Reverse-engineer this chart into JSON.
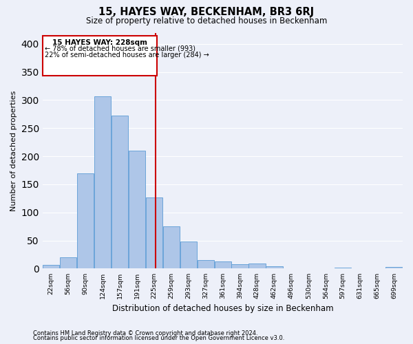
{
  "title": "15, HAYES WAY, BECKENHAM, BR3 6RJ",
  "subtitle": "Size of property relative to detached houses in Beckenham",
  "xlabel": "Distribution of detached houses by size in Beckenham",
  "ylabel": "Number of detached properties",
  "categories": [
    "22sqm",
    "56sqm",
    "90sqm",
    "124sqm",
    "157sqm",
    "191sqm",
    "225sqm",
    "259sqm",
    "293sqm",
    "327sqm",
    "361sqm",
    "394sqm",
    "428sqm",
    "462sqm",
    "496sqm",
    "530sqm",
    "564sqm",
    "597sqm",
    "631sqm",
    "665sqm",
    "699sqm"
  ],
  "values": [
    7,
    20,
    170,
    307,
    272,
    210,
    127,
    75,
    48,
    15,
    13,
    8,
    9,
    4,
    1,
    0,
    0,
    2,
    0,
    0,
    3
  ],
  "bar_color": "#aec6e8",
  "bar_edgecolor": "#5b9bd5",
  "property_line_label": "15 HAYES WAY: 228sqm",
  "annotation_line1": "← 78% of detached houses are smaller (993)",
  "annotation_line2": "22% of semi-detached houses are larger (284) →",
  "vline_color": "#cc0000",
  "box_edgecolor": "#cc0000",
  "background_color": "#edf0f9",
  "grid_color": "#ffffff",
  "footnote1": "Contains HM Land Registry data © Crown copyright and database right 2024.",
  "footnote2": "Contains public sector information licensed under the Open Government Licence v3.0.",
  "ylim": [
    0,
    420
  ],
  "yticks": [
    0,
    50,
    100,
    150,
    200,
    250,
    300,
    350,
    400
  ],
  "prop_size": 228,
  "bin_edges": [
    5,
    39,
    73,
    107,
    141,
    175,
    209,
    243,
    277,
    311,
    345,
    378,
    412,
    446,
    480,
    514,
    548,
    582,
    615,
    649,
    683,
    717
  ]
}
